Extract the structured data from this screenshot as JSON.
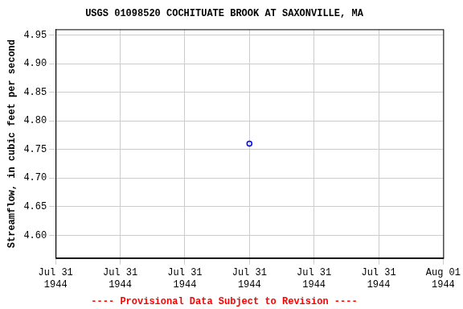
{
  "chart_data": {
    "type": "scatter",
    "title": "USGS 01098520 COCHITUATE BROOK AT SAXONVILLE, MA",
    "y_label": "Streamflow, in cubic feet per second",
    "note": "---- Provisional Data Subject to Revision ----",
    "categories": [
      "Jul 31\n1944",
      "Jul 31\n1944",
      "Jul 31\n1944",
      "Jul 31\n1944",
      "Jul 31\n1944",
      "Jul 31\n1944",
      "Aug 01\n1944"
    ],
    "values": [
      null,
      null,
      null,
      4.76,
      null,
      null,
      null
    ],
    "color": "#0000ff",
    "marker": "circle",
    "ylim": [
      4.56,
      4.96
    ],
    "yticks": [
      {
        "value": 4.6,
        "label": "4.60"
      },
      4.65,
      {
        "value": 4.7,
        "label": "4.70"
      },
      4.75,
      {
        "value": 4.8,
        "label": "4.80"
      },
      4.85,
      {
        "value": 4.9,
        "label": "4.90"
      },
      4.95
    ],
    "grid": true
  }
}
